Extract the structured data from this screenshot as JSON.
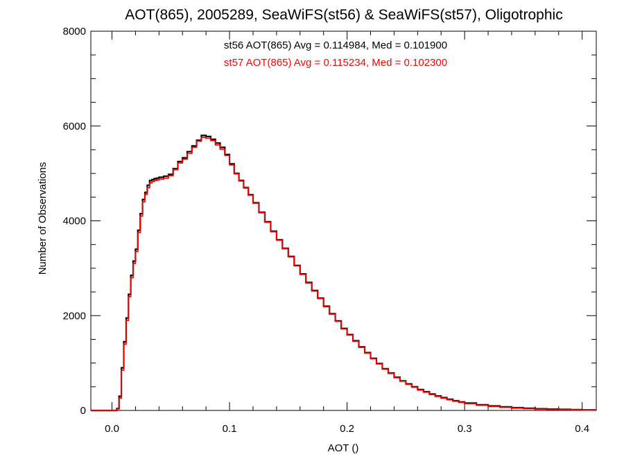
{
  "chart_data": {
    "type": "line",
    "style": "histogram-step",
    "title": "AOT(865), 2005289, SeaWiFS(st56) & SeaWiFS(st57), Oligotrophic",
    "xlabel": "AOT ()",
    "ylabel": "Number of Observations",
    "xlim": [
      -0.018,
      0.412
    ],
    "ylim": [
      0,
      8000
    ],
    "x_ticks": [
      0.0,
      0.1,
      0.2,
      0.3,
      0.4
    ],
    "x_tick_labels": [
      "0.0",
      "0.1",
      "0.2",
      "0.3",
      "0.4"
    ],
    "y_ticks": [
      0,
      2000,
      4000,
      6000,
      8000
    ],
    "y_tick_labels": [
      "0",
      "2000",
      "4000",
      "6000",
      "8000"
    ],
    "grid": false,
    "annotations": [
      {
        "text": "st56 AOT(865) Avg = 0.114984, Med = 0.101900",
        "color": "#000000"
      },
      {
        "text": "st57 AOT(865) Avg = 0.115234, Med = 0.102300",
        "color": "#ff0000"
      }
    ],
    "series": [
      {
        "color": "#000000",
        "x": [
          -0.018,
          0.0,
          0.004,
          0.006,
          0.008,
          0.01,
          0.012,
          0.014,
          0.016,
          0.018,
          0.02,
          0.022,
          0.024,
          0.026,
          0.028,
          0.03,
          0.032,
          0.034,
          0.036,
          0.038,
          0.04,
          0.044,
          0.048,
          0.052,
          0.056,
          0.06,
          0.064,
          0.068,
          0.072,
          0.076,
          0.08,
          0.084,
          0.088,
          0.092,
          0.096,
          0.1,
          0.104,
          0.108,
          0.112,
          0.116,
          0.12,
          0.125,
          0.13,
          0.135,
          0.14,
          0.145,
          0.15,
          0.155,
          0.16,
          0.165,
          0.17,
          0.175,
          0.18,
          0.185,
          0.19,
          0.195,
          0.2,
          0.205,
          0.21,
          0.215,
          0.22,
          0.225,
          0.23,
          0.235,
          0.24,
          0.245,
          0.25,
          0.255,
          0.26,
          0.265,
          0.27,
          0.275,
          0.28,
          0.285,
          0.29,
          0.295,
          0.3,
          0.31,
          0.32,
          0.33,
          0.34,
          0.35,
          0.36,
          0.37,
          0.38,
          0.39,
          0.4,
          0.41
        ],
        "y": [
          0,
          0,
          40,
          300,
          900,
          1450,
          1950,
          2450,
          2850,
          3150,
          3400,
          3800,
          4150,
          4450,
          4600,
          4750,
          4850,
          4870,
          4890,
          4900,
          4920,
          4940,
          4980,
          5100,
          5250,
          5330,
          5460,
          5580,
          5700,
          5800,
          5780,
          5720,
          5640,
          5550,
          5400,
          5200,
          5000,
          4850,
          4700,
          4550,
          4380,
          4180,
          3980,
          3780,
          3600,
          3420,
          3250,
          3060,
          2880,
          2700,
          2530,
          2370,
          2200,
          2040,
          1890,
          1730,
          1600,
          1470,
          1340,
          1220,
          1100,
          990,
          880,
          790,
          700,
          625,
          560,
          500,
          440,
          395,
          345,
          305,
          270,
          235,
          205,
          180,
          155,
          120,
          95,
          75,
          58,
          45,
          35,
          28,
          22,
          16,
          12,
          9
        ]
      },
      {
        "color": "#ff0000",
        "x": [
          -0.018,
          0.0,
          0.004,
          0.006,
          0.008,
          0.01,
          0.012,
          0.014,
          0.016,
          0.018,
          0.02,
          0.022,
          0.024,
          0.026,
          0.028,
          0.03,
          0.032,
          0.034,
          0.036,
          0.038,
          0.04,
          0.044,
          0.048,
          0.052,
          0.056,
          0.06,
          0.064,
          0.068,
          0.072,
          0.076,
          0.08,
          0.084,
          0.088,
          0.092,
          0.096,
          0.1,
          0.104,
          0.108,
          0.112,
          0.116,
          0.12,
          0.125,
          0.13,
          0.135,
          0.14,
          0.145,
          0.15,
          0.155,
          0.16,
          0.165,
          0.17,
          0.175,
          0.18,
          0.185,
          0.19,
          0.195,
          0.2,
          0.205,
          0.21,
          0.215,
          0.22,
          0.225,
          0.23,
          0.235,
          0.24,
          0.245,
          0.25,
          0.255,
          0.26,
          0.265,
          0.27,
          0.275,
          0.28,
          0.285,
          0.29,
          0.295,
          0.3,
          0.31,
          0.32,
          0.33,
          0.34,
          0.35,
          0.36,
          0.37,
          0.38,
          0.39,
          0.4,
          0.41
        ],
        "y": [
          0,
          0,
          30,
          260,
          850,
          1400,
          1900,
          2400,
          2800,
          3100,
          3350,
          3750,
          4100,
          4400,
          4560,
          4700,
          4800,
          4830,
          4850,
          4860,
          4880,
          4900,
          4950,
          5080,
          5220,
          5300,
          5420,
          5550,
          5680,
          5760,
          5740,
          5690,
          5600,
          5510,
          5380,
          5180,
          4990,
          4840,
          4690,
          4540,
          4370,
          4170,
          3970,
          3770,
          3590,
          3410,
          3240,
          3050,
          2870,
          2690,
          2520,
          2360,
          2190,
          2030,
          1880,
          1720,
          1590,
          1460,
          1330,
          1210,
          1090,
          980,
          870,
          780,
          690,
          615,
          550,
          490,
          430,
          385,
          335,
          295,
          260,
          225,
          195,
          170,
          145,
          110,
          85,
          65,
          48,
          36,
          27,
          20,
          15,
          11,
          8,
          5
        ]
      }
    ]
  }
}
